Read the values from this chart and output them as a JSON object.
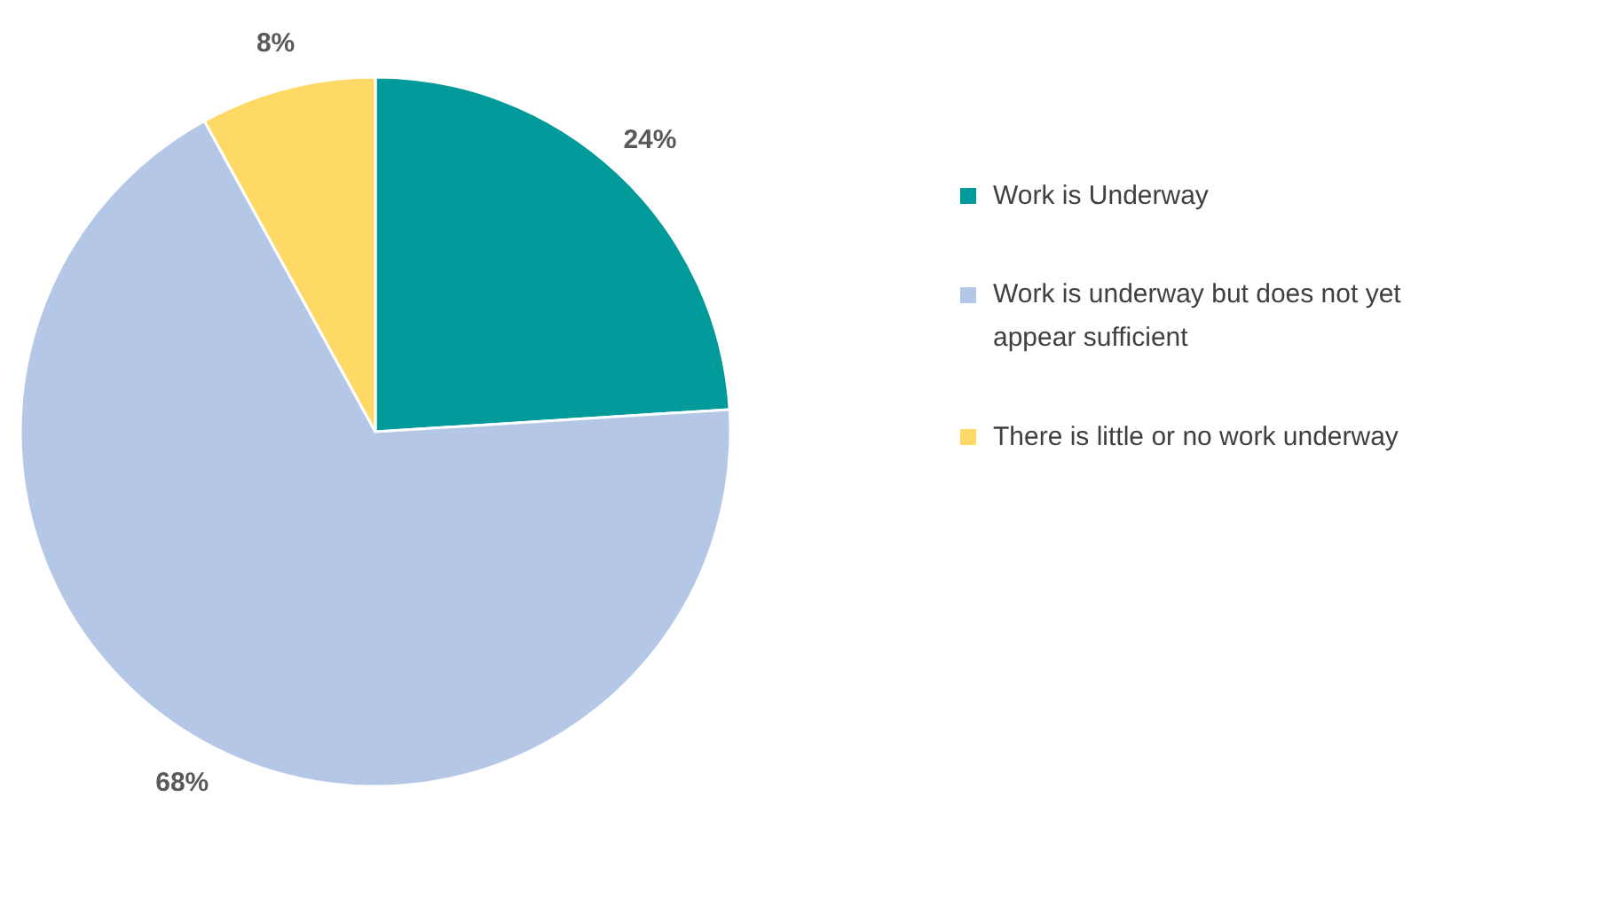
{
  "chart_data": {
    "type": "pie",
    "categories": [
      "Work is Underway",
      "Work is underway but does not yet appear sufficient",
      "There is little or no work underway"
    ],
    "values": [
      24,
      68,
      8
    ],
    "colors": [
      "#009a9a",
      "#b4c7e7",
      "#ffd966"
    ],
    "value_labels": [
      "24%",
      "68%",
      "8%"
    ],
    "legend": "right"
  }
}
